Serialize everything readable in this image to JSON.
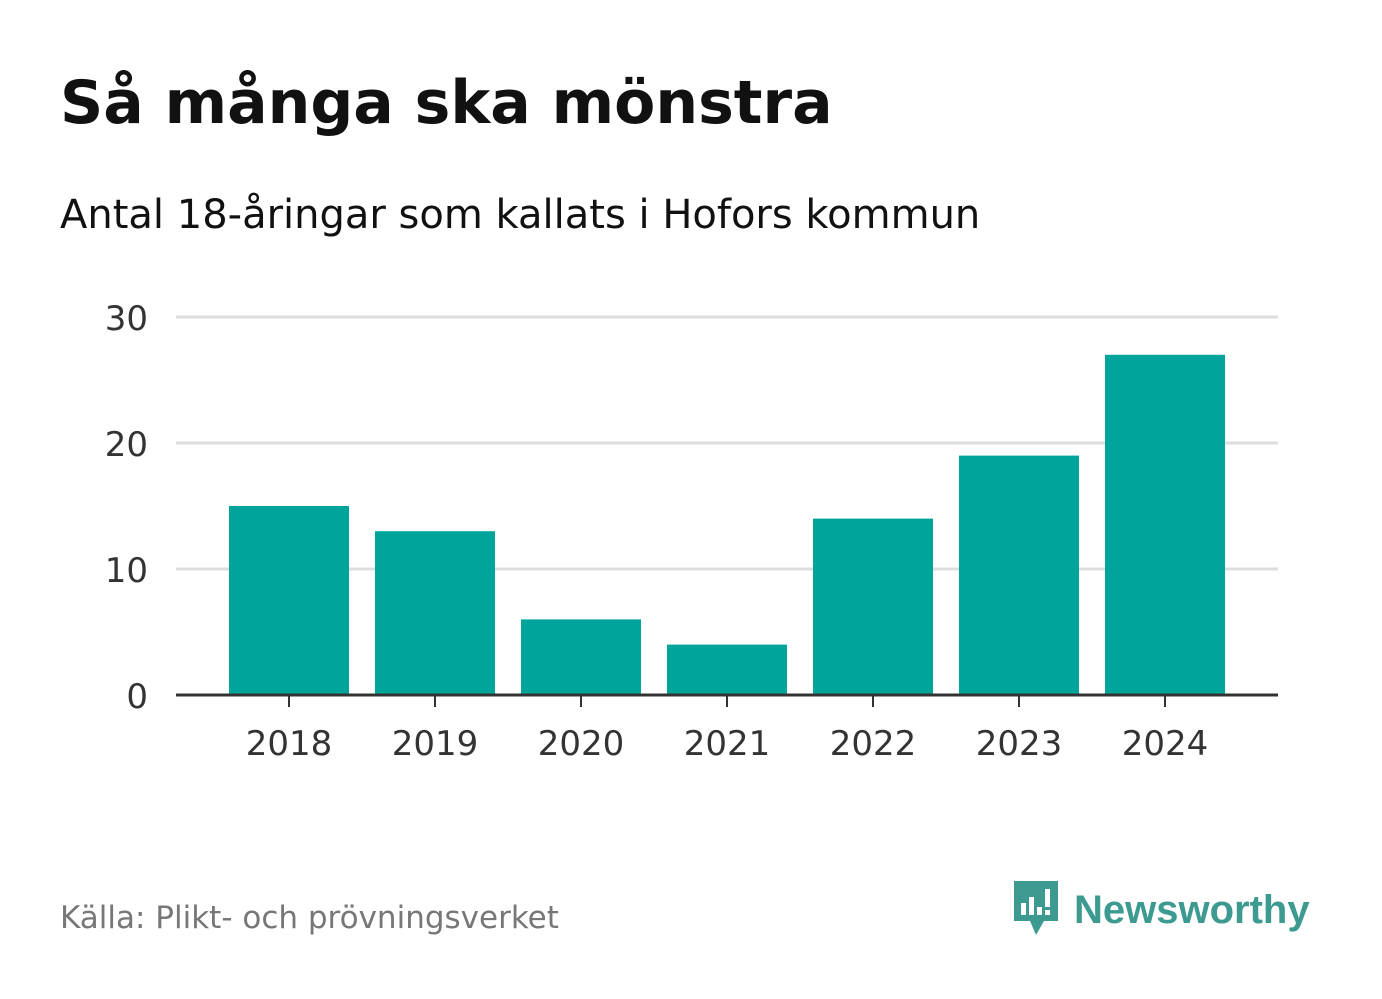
{
  "header": {
    "title": "Så många ska mönstra",
    "subtitle": "Antal 18-åringar som kallats i Hofors kommun"
  },
  "footer": {
    "source": "Källa: Plikt- och prövningsverket",
    "brand": "Newsworthy",
    "brand_icon": "newsworthy-logo-icon"
  },
  "colors": {
    "bar": "#00a49b",
    "grid": "#dddddd",
    "axis": "#333333",
    "brand": "#3d9a91"
  },
  "chart_data": {
    "type": "bar",
    "categories": [
      "2018",
      "2019",
      "2020",
      "2021",
      "2022",
      "2023",
      "2024"
    ],
    "values": [
      15,
      13,
      6,
      4,
      14,
      19,
      27
    ],
    "yticks": [
      0,
      10,
      20,
      30
    ],
    "ylim": [
      0,
      30
    ],
    "grid": true,
    "legend": "none"
  }
}
